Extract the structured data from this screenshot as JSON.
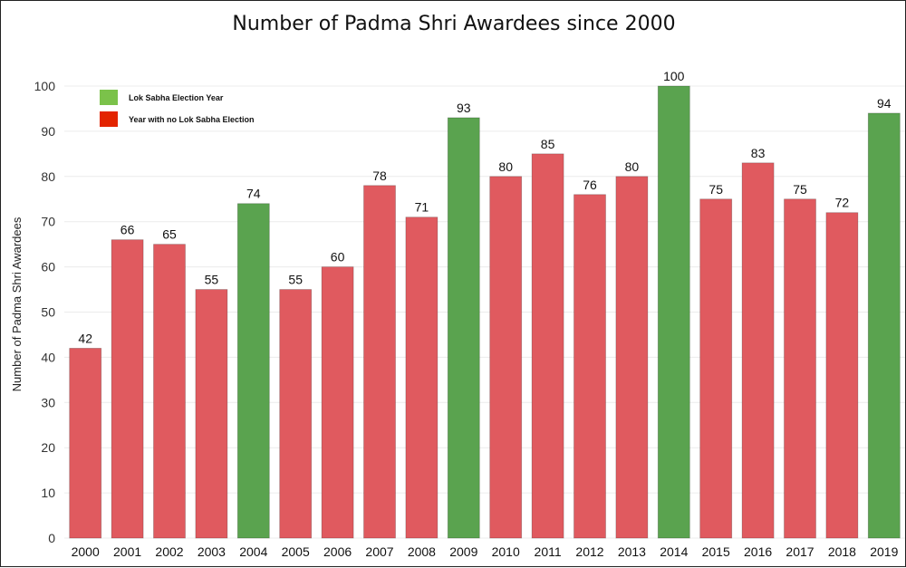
{
  "chart_data": {
    "type": "bar",
    "title": "Number of Padma Shri Awardees since 2000",
    "xlabel": "",
    "ylabel": "Number of Padma Shri Awardees",
    "ylim": [
      0,
      100
    ],
    "yticks": [
      0,
      10,
      20,
      30,
      40,
      50,
      60,
      70,
      80,
      90,
      100
    ],
    "grid": true,
    "legend_position": "top-left",
    "categories": [
      "2000",
      "2001",
      "2002",
      "2003",
      "2004",
      "2005",
      "2006",
      "2007",
      "2008",
      "2009",
      "2010",
      "2011",
      "2012",
      "2013",
      "2014",
      "2015",
      "2016",
      "2017",
      "2018",
      "2019"
    ],
    "values": [
      42,
      66,
      65,
      55,
      74,
      55,
      60,
      78,
      71,
      93,
      80,
      85,
      76,
      80,
      100,
      75,
      83,
      75,
      72,
      94
    ],
    "election_year": [
      false,
      false,
      false,
      false,
      true,
      false,
      false,
      false,
      false,
      true,
      false,
      false,
      false,
      false,
      true,
      false,
      false,
      false,
      false,
      true
    ],
    "legend": [
      {
        "label": "Lok Sabha Election Year",
        "color": "#5aa34f"
      },
      {
        "label": "Year with no Lok Sabha Election",
        "color": "#e32400"
      }
    ],
    "colors": {
      "election": "#5aa34f",
      "non_election": "#e05a5f",
      "legend_election": "#7bc24a",
      "legend_non_election": "#e32400"
    }
  }
}
